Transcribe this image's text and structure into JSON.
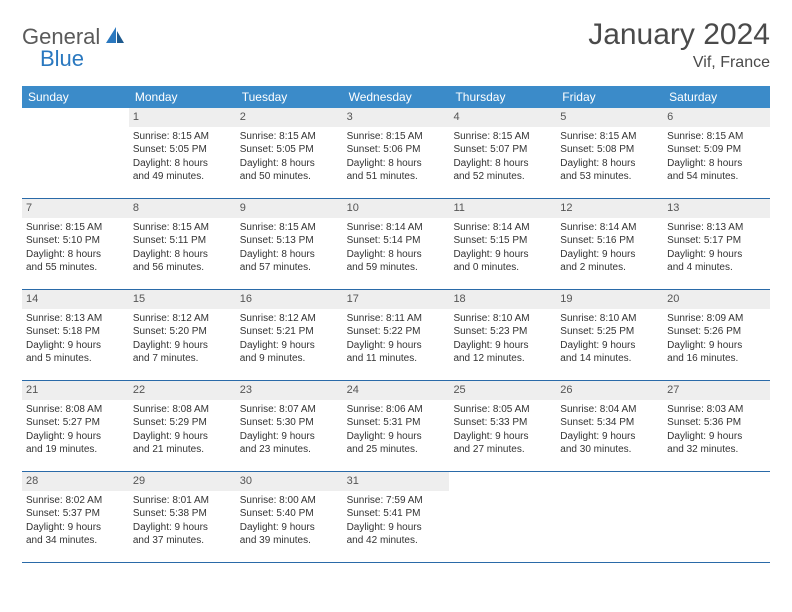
{
  "logo": {
    "text1": "General",
    "text2": "Blue"
  },
  "title": "January 2024",
  "location": "Vif, France",
  "colors": {
    "header_bg": "#3b8bc9",
    "header_text": "#ffffff",
    "daynum_bg": "#eeeeee",
    "border": "#2a6aa8",
    "logo_gray": "#5a5a5a",
    "logo_blue": "#2a78bf"
  },
  "dayNames": [
    "Sunday",
    "Monday",
    "Tuesday",
    "Wednesday",
    "Thursday",
    "Friday",
    "Saturday"
  ],
  "weeks": [
    [
      null,
      {
        "n": "1",
        "sr": "Sunrise: 8:15 AM",
        "ss": "Sunset: 5:05 PM",
        "dl1": "Daylight: 8 hours",
        "dl2": "and 49 minutes."
      },
      {
        "n": "2",
        "sr": "Sunrise: 8:15 AM",
        "ss": "Sunset: 5:05 PM",
        "dl1": "Daylight: 8 hours",
        "dl2": "and 50 minutes."
      },
      {
        "n": "3",
        "sr": "Sunrise: 8:15 AM",
        "ss": "Sunset: 5:06 PM",
        "dl1": "Daylight: 8 hours",
        "dl2": "and 51 minutes."
      },
      {
        "n": "4",
        "sr": "Sunrise: 8:15 AM",
        "ss": "Sunset: 5:07 PM",
        "dl1": "Daylight: 8 hours",
        "dl2": "and 52 minutes."
      },
      {
        "n": "5",
        "sr": "Sunrise: 8:15 AM",
        "ss": "Sunset: 5:08 PM",
        "dl1": "Daylight: 8 hours",
        "dl2": "and 53 minutes."
      },
      {
        "n": "6",
        "sr": "Sunrise: 8:15 AM",
        "ss": "Sunset: 5:09 PM",
        "dl1": "Daylight: 8 hours",
        "dl2": "and 54 minutes."
      }
    ],
    [
      {
        "n": "7",
        "sr": "Sunrise: 8:15 AM",
        "ss": "Sunset: 5:10 PM",
        "dl1": "Daylight: 8 hours",
        "dl2": "and 55 minutes."
      },
      {
        "n": "8",
        "sr": "Sunrise: 8:15 AM",
        "ss": "Sunset: 5:11 PM",
        "dl1": "Daylight: 8 hours",
        "dl2": "and 56 minutes."
      },
      {
        "n": "9",
        "sr": "Sunrise: 8:15 AM",
        "ss": "Sunset: 5:13 PM",
        "dl1": "Daylight: 8 hours",
        "dl2": "and 57 minutes."
      },
      {
        "n": "10",
        "sr": "Sunrise: 8:14 AM",
        "ss": "Sunset: 5:14 PM",
        "dl1": "Daylight: 8 hours",
        "dl2": "and 59 minutes."
      },
      {
        "n": "11",
        "sr": "Sunrise: 8:14 AM",
        "ss": "Sunset: 5:15 PM",
        "dl1": "Daylight: 9 hours",
        "dl2": "and 0 minutes."
      },
      {
        "n": "12",
        "sr": "Sunrise: 8:14 AM",
        "ss": "Sunset: 5:16 PM",
        "dl1": "Daylight: 9 hours",
        "dl2": "and 2 minutes."
      },
      {
        "n": "13",
        "sr": "Sunrise: 8:13 AM",
        "ss": "Sunset: 5:17 PM",
        "dl1": "Daylight: 9 hours",
        "dl2": "and 4 minutes."
      }
    ],
    [
      {
        "n": "14",
        "sr": "Sunrise: 8:13 AM",
        "ss": "Sunset: 5:18 PM",
        "dl1": "Daylight: 9 hours",
        "dl2": "and 5 minutes."
      },
      {
        "n": "15",
        "sr": "Sunrise: 8:12 AM",
        "ss": "Sunset: 5:20 PM",
        "dl1": "Daylight: 9 hours",
        "dl2": "and 7 minutes."
      },
      {
        "n": "16",
        "sr": "Sunrise: 8:12 AM",
        "ss": "Sunset: 5:21 PM",
        "dl1": "Daylight: 9 hours",
        "dl2": "and 9 minutes."
      },
      {
        "n": "17",
        "sr": "Sunrise: 8:11 AM",
        "ss": "Sunset: 5:22 PM",
        "dl1": "Daylight: 9 hours",
        "dl2": "and 11 minutes."
      },
      {
        "n": "18",
        "sr": "Sunrise: 8:10 AM",
        "ss": "Sunset: 5:23 PM",
        "dl1": "Daylight: 9 hours",
        "dl2": "and 12 minutes."
      },
      {
        "n": "19",
        "sr": "Sunrise: 8:10 AM",
        "ss": "Sunset: 5:25 PM",
        "dl1": "Daylight: 9 hours",
        "dl2": "and 14 minutes."
      },
      {
        "n": "20",
        "sr": "Sunrise: 8:09 AM",
        "ss": "Sunset: 5:26 PM",
        "dl1": "Daylight: 9 hours",
        "dl2": "and 16 minutes."
      }
    ],
    [
      {
        "n": "21",
        "sr": "Sunrise: 8:08 AM",
        "ss": "Sunset: 5:27 PM",
        "dl1": "Daylight: 9 hours",
        "dl2": "and 19 minutes."
      },
      {
        "n": "22",
        "sr": "Sunrise: 8:08 AM",
        "ss": "Sunset: 5:29 PM",
        "dl1": "Daylight: 9 hours",
        "dl2": "and 21 minutes."
      },
      {
        "n": "23",
        "sr": "Sunrise: 8:07 AM",
        "ss": "Sunset: 5:30 PM",
        "dl1": "Daylight: 9 hours",
        "dl2": "and 23 minutes."
      },
      {
        "n": "24",
        "sr": "Sunrise: 8:06 AM",
        "ss": "Sunset: 5:31 PM",
        "dl1": "Daylight: 9 hours",
        "dl2": "and 25 minutes."
      },
      {
        "n": "25",
        "sr": "Sunrise: 8:05 AM",
        "ss": "Sunset: 5:33 PM",
        "dl1": "Daylight: 9 hours",
        "dl2": "and 27 minutes."
      },
      {
        "n": "26",
        "sr": "Sunrise: 8:04 AM",
        "ss": "Sunset: 5:34 PM",
        "dl1": "Daylight: 9 hours",
        "dl2": "and 30 minutes."
      },
      {
        "n": "27",
        "sr": "Sunrise: 8:03 AM",
        "ss": "Sunset: 5:36 PM",
        "dl1": "Daylight: 9 hours",
        "dl2": "and 32 minutes."
      }
    ],
    [
      {
        "n": "28",
        "sr": "Sunrise: 8:02 AM",
        "ss": "Sunset: 5:37 PM",
        "dl1": "Daylight: 9 hours",
        "dl2": "and 34 minutes."
      },
      {
        "n": "29",
        "sr": "Sunrise: 8:01 AM",
        "ss": "Sunset: 5:38 PM",
        "dl1": "Daylight: 9 hours",
        "dl2": "and 37 minutes."
      },
      {
        "n": "30",
        "sr": "Sunrise: 8:00 AM",
        "ss": "Sunset: 5:40 PM",
        "dl1": "Daylight: 9 hours",
        "dl2": "and 39 minutes."
      },
      {
        "n": "31",
        "sr": "Sunrise: 7:59 AM",
        "ss": "Sunset: 5:41 PM",
        "dl1": "Daylight: 9 hours",
        "dl2": "and 42 minutes."
      },
      null,
      null,
      null
    ]
  ]
}
